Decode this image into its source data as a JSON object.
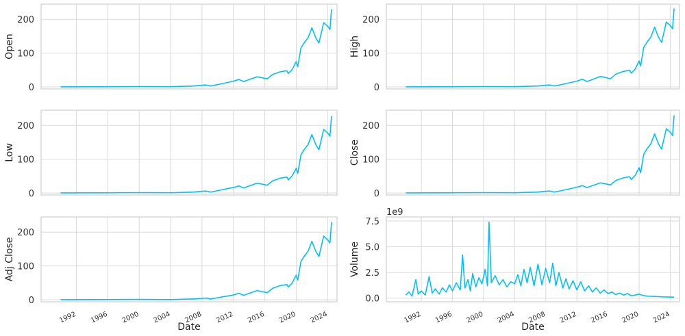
{
  "colors": {
    "line": "#00bfff",
    "grid": "#d9d9d9",
    "frame": "#cfcfcf"
  },
  "chart_data": [
    {
      "type": "line",
      "ylabel": "Open",
      "xlabel": "",
      "xlim": [
        1987.5,
        2025.2
      ],
      "ylim": [
        -6,
        245
      ],
      "yticks": [
        0,
        100,
        200
      ],
      "ytick_labels": [
        "0",
        "100",
        "200"
      ],
      "xtick_labels": [],
      "x": [
        1990,
        1995,
        2000,
        2004,
        2007,
        2008.5,
        2009.1,
        2010,
        2011,
        2012,
        2012.7,
        2013.3,
        2014,
        2015,
        2015.7,
        2016.3,
        2017,
        2018,
        2018.8,
        2019,
        2019.5,
        2020,
        2020.2,
        2020.6,
        2021,
        2021.5,
        2022,
        2022.5,
        2022.9,
        2023.5,
        2024,
        2024.3,
        2024.5
      ],
      "y": [
        0.3,
        0.5,
        1,
        0.6,
        3,
        6,
        3,
        7,
        12,
        17,
        22,
        16,
        22,
        30,
        27,
        24,
        37,
        45,
        48,
        40,
        52,
        75,
        60,
        115,
        130,
        145,
        175,
        145,
        130,
        190,
        180,
        170,
        230
      ]
    },
    {
      "type": "line",
      "ylabel": "High",
      "xlabel": "",
      "xlim": [
        1987.5,
        2025.2
      ],
      "ylim": [
        -6,
        245
      ],
      "yticks": [
        0,
        100,
        200
      ],
      "ytick_labels": [
        "0",
        "100",
        "200"
      ],
      "xtick_labels": [],
      "x": [
        1990,
        1995,
        2000,
        2004,
        2007,
        2008.5,
        2009.1,
        2010,
        2011,
        2012,
        2012.7,
        2013.3,
        2014,
        2015,
        2015.7,
        2016.3,
        2017,
        2018,
        2018.8,
        2019,
        2019.5,
        2020,
        2020.2,
        2020.6,
        2021,
        2021.5,
        2022,
        2022.5,
        2022.9,
        2023.5,
        2024,
        2024.3,
        2024.5
      ],
      "y": [
        0.3,
        0.5,
        1,
        0.6,
        3,
        6,
        3,
        7,
        12,
        17,
        23,
        16,
        22,
        31,
        28,
        24,
        38,
        46,
        49,
        41,
        53,
        77,
        62,
        117,
        132,
        147,
        177,
        147,
        132,
        192,
        182,
        172,
        232
      ]
    },
    {
      "type": "line",
      "ylabel": "Low",
      "xlabel": "",
      "xlim": [
        1987.5,
        2025.2
      ],
      "ylim": [
        -6,
        245
      ],
      "yticks": [
        0,
        100,
        200
      ],
      "ytick_labels": [
        "0",
        "100",
        "200"
      ],
      "xtick_labels": [],
      "x": [
        1990,
        1995,
        2000,
        2004,
        2007,
        2008.5,
        2009.1,
        2010,
        2011,
        2012,
        2012.7,
        2013.3,
        2014,
        2015,
        2015.7,
        2016.3,
        2017,
        2018,
        2018.8,
        2019,
        2019.5,
        2020,
        2020.2,
        2020.6,
        2021,
        2021.5,
        2022,
        2022.5,
        2022.9,
        2023.5,
        2024,
        2024.3,
        2024.5
      ],
      "y": [
        0.3,
        0.5,
        1,
        0.6,
        3,
        6,
        3,
        7,
        12,
        16,
        21,
        15,
        21,
        29,
        26,
        23,
        36,
        44,
        47,
        39,
        51,
        73,
        58,
        113,
        128,
        143,
        173,
        143,
        128,
        188,
        178,
        168,
        228
      ]
    },
    {
      "type": "line",
      "ylabel": "Close",
      "xlabel": "",
      "xlim": [
        1987.5,
        2025.2
      ],
      "ylim": [
        -6,
        245
      ],
      "yticks": [
        0,
        100,
        200
      ],
      "ytick_labels": [
        "0",
        "100",
        "200"
      ],
      "xtick_labels": [],
      "x": [
        1990,
        1995,
        2000,
        2004,
        2007,
        2008.5,
        2009.1,
        2010,
        2011,
        2012,
        2012.7,
        2013.3,
        2014,
        2015,
        2015.7,
        2016.3,
        2017,
        2018,
        2018.8,
        2019,
        2019.5,
        2020,
        2020.2,
        2020.6,
        2021,
        2021.5,
        2022,
        2022.5,
        2022.9,
        2023.5,
        2024,
        2024.3,
        2024.5
      ],
      "y": [
        0.3,
        0.5,
        1,
        0.6,
        3,
        6,
        3,
        7,
        12,
        17,
        22,
        16,
        22,
        30,
        27,
        24,
        37,
        45,
        48,
        40,
        52,
        75,
        60,
        115,
        130,
        145,
        175,
        145,
        130,
        190,
        180,
        170,
        230
      ]
    },
    {
      "type": "line",
      "ylabel": "Adj Close",
      "xlabel": "Date",
      "xlim": [
        1987.5,
        2025.2
      ],
      "ylim": [
        -6,
        245
      ],
      "yticks": [
        0,
        100,
        200
      ],
      "ytick_labels": [
        "0",
        "100",
        "200"
      ],
      "xticks": [
        1992,
        1996,
        2000,
        2004,
        2008,
        2012,
        2016,
        2020,
        2024
      ],
      "xtick_labels": [
        "1992",
        "1996",
        "2000",
        "2004",
        "2008",
        "2012",
        "2016",
        "2020",
        "2024"
      ],
      "x": [
        1990,
        1995,
        2000,
        2004,
        2007,
        2008.5,
        2009.1,
        2010,
        2011,
        2012,
        2012.7,
        2013.3,
        2014,
        2015,
        2015.7,
        2016.3,
        2017,
        2018,
        2018.8,
        2019,
        2019.5,
        2020,
        2020.2,
        2020.6,
        2021,
        2021.5,
        2022,
        2022.5,
        2022.9,
        2023.5,
        2024,
        2024.3,
        2024.5
      ],
      "y": [
        0.2,
        0.4,
        0.8,
        0.5,
        2.5,
        5,
        2.5,
        6,
        10,
        14,
        19,
        13,
        19,
        27,
        24,
        21,
        34,
        42,
        45,
        38,
        50,
        73,
        58,
        113,
        128,
        143,
        173,
        143,
        128,
        188,
        178,
        168,
        230
      ]
    },
    {
      "type": "line",
      "ylabel": "Volume",
      "xlabel": "Date",
      "offset_label": "1e9",
      "xlim": [
        1987.5,
        2025.2
      ],
      "ylim": [
        -0.35,
        7.9
      ],
      "yticks": [
        0,
        2.5,
        5,
        7.5
      ],
      "ytick_labels": [
        "0.0",
        "2.5",
        "5.0",
        "7.5"
      ],
      "xticks": [
        1992,
        1996,
        2000,
        2004,
        2008,
        2012,
        2016,
        2020,
        2024
      ],
      "xtick_labels": [
        "1992",
        "1996",
        "2000",
        "2004",
        "2008",
        "2012",
        "2016",
        "2020",
        "2024"
      ],
      "x": [
        1990,
        1990.4,
        1990.8,
        1991.3,
        1991.6,
        1992,
        1992.5,
        1993,
        1993.4,
        1993.8,
        1994.3,
        1994.7,
        1995.2,
        1995.6,
        1996,
        1996.5,
        1997,
        1997.3,
        1997.6,
        1998,
        1998.3,
        1998.6,
        1999,
        1999.4,
        1999.8,
        2000.2,
        2000.5,
        2000.7,
        2001,
        2001.5,
        2002,
        2002.5,
        2003,
        2003.5,
        2004,
        2004.4,
        2004.8,
        2005.2,
        2005.6,
        2006,
        2006.5,
        2007,
        2007.5,
        2008,
        2008.5,
        2008.9,
        2009.3,
        2009.7,
        2010.2,
        2010.6,
        2011,
        2011.5,
        2012,
        2012.5,
        2013,
        2013.5,
        2014,
        2014.5,
        2015,
        2015.5,
        2016,
        2016.5,
        2017,
        2017.5,
        2018,
        2018.5,
        2019,
        2019.5,
        2020,
        2020.3,
        2020.7,
        2021,
        2021.5,
        2022,
        2022.5,
        2023,
        2023.5,
        2024,
        2024.5
      ],
      "y": [
        0.3,
        0.6,
        0.2,
        1.8,
        0.4,
        0.7,
        0.3,
        2.1,
        0.5,
        0.9,
        0.4,
        1.0,
        0.6,
        1.3,
        0.7,
        1.5,
        0.8,
        4.2,
        1.0,
        1.8,
        0.7,
        2.4,
        1.1,
        2.0,
        1.4,
        2.8,
        1.2,
        7.4,
        1.5,
        2.2,
        1.3,
        1.8,
        1.1,
        1.6,
        1.4,
        2.3,
        1.2,
        2.8,
        1.5,
        3.0,
        1.2,
        3.3,
        1.3,
        2.9,
        1.5,
        3.4,
        1.2,
        2.5,
        1.0,
        1.9,
        0.9,
        1.7,
        0.8,
        1.6,
        0.7,
        1.2,
        0.6,
        1.0,
        0.5,
        0.8,
        0.45,
        0.6,
        0.35,
        0.5,
        0.3,
        0.45,
        0.25,
        0.3,
        0.4,
        0.3,
        0.25,
        0.2,
        0.18,
        0.17,
        0.15,
        0.13,
        0.12,
        0.11,
        0.1
      ]
    }
  ]
}
